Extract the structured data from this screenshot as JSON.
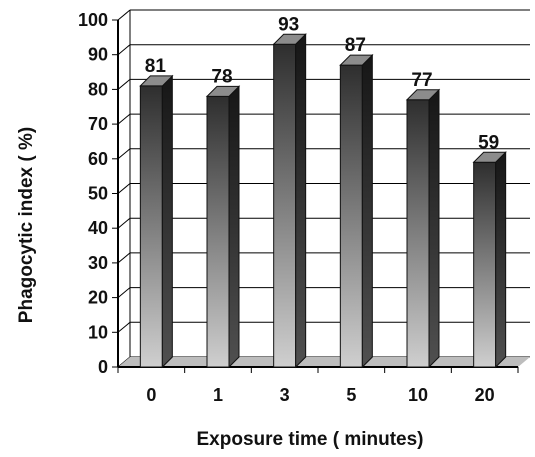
{
  "chart_data": {
    "type": "bar",
    "categories": [
      "0",
      "1",
      "3",
      "5",
      "10",
      "20"
    ],
    "values": [
      81,
      78,
      93,
      87,
      77,
      59
    ],
    "value_labels": [
      "81",
      "78",
      "93",
      "87",
      "77",
      "59"
    ],
    "title": "",
    "xlabel": "Exposure time ( minutes)",
    "ylabel": "Phagocytic index  ( %)",
    "ylim": [
      0,
      100
    ],
    "yticks": [
      "0",
      "10",
      "20",
      "30",
      "40",
      "50",
      "60",
      "70",
      "80",
      "90",
      "100"
    ],
    "grid": true,
    "style": "3d-gradient-bars",
    "colors": {
      "bar_dark": "#2e2e2e",
      "bar_light": "#c9c9c9",
      "bar_side": "#1f1f1f",
      "bar_top": "#8c8c8c",
      "floor": "#bdbdbd",
      "grid": "#000000",
      "text": "#111111"
    }
  }
}
